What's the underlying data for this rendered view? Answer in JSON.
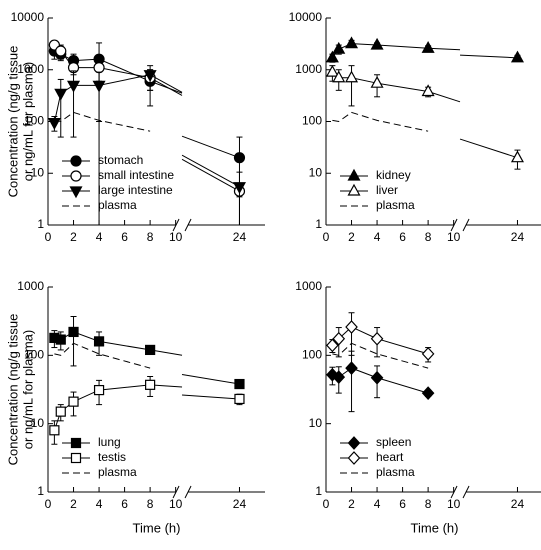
{
  "chart_data": [
    {
      "type": "line",
      "ylabel": [
        "Concentration (ng/g tissue",
        "or ng/mL for plasma)"
      ],
      "x": [
        0.5,
        1,
        2,
        4,
        8,
        24
      ],
      "xlim": [
        0,
        26
      ],
      "xbreak": [
        10.5,
        19.5
      ],
      "xticks": [
        0,
        2,
        4,
        6,
        8,
        10,
        24
      ],
      "ylim": [
        1,
        10000
      ],
      "yticks": [
        1,
        10,
        100,
        1000,
        10000
      ],
      "log_y": true,
      "legend": "lower left",
      "series": [
        {
          "name": "stomach",
          "color": "#000000",
          "marker": "circle",
          "filled": true,
          "values": [
            2300,
            2000,
            1500,
            1600,
            600,
            20
          ],
          "errors": [
            700,
            500,
            500,
            1700,
            400,
            30
          ]
        },
        {
          "name": "small intestine",
          "color": "#000000",
          "marker": "circle",
          "filled": false,
          "values": [
            3000,
            2300,
            1100,
            1100,
            700,
            4.5
          ],
          "errors": [
            300,
            700,
            300,
            500,
            300,
            1
          ]
        },
        {
          "name": "large intestine",
          "color": "#000000",
          "marker": "triangle-down",
          "filled": true,
          "values": [
            95,
            350,
            500,
            500,
            800,
            5.5
          ],
          "errors": [
            30,
            300,
            450,
            400,
            400,
            5
          ]
        },
        {
          "name": "plasma",
          "color": "#000000",
          "dashed": true,
          "values": [
            105,
            100,
            150,
            105,
            65,
            null
          ]
        }
      ]
    },
    {
      "type": "line",
      "x": [
        0.5,
        1,
        2,
        4,
        8,
        24
      ],
      "xlim": [
        0,
        26
      ],
      "xbreak": [
        10.5,
        19.5
      ],
      "xticks": [
        0,
        2,
        4,
        6,
        8,
        10,
        24
      ],
      "ylim": [
        1,
        10000
      ],
      "yticks": [
        1,
        10,
        100,
        1000,
        10000
      ],
      "log_y": true,
      "legend": "lower left",
      "series": [
        {
          "name": "kidney",
          "color": "#000000",
          "marker": "triangle-up",
          "filled": true,
          "values": [
            1700,
            2500,
            3200,
            3000,
            2600,
            1700
          ],
          "errors": [
            300,
            500,
            500,
            300,
            300,
            200
          ]
        },
        {
          "name": "liver",
          "color": "#000000",
          "marker": "triangle-up",
          "filled": false,
          "values": [
            900,
            700,
            700,
            550,
            380,
            20
          ],
          "errors": [
            300,
            300,
            500,
            250,
            80,
            8
          ]
        },
        {
          "name": "plasma",
          "color": "#000000",
          "dashed": true,
          "values": [
            105,
            100,
            150,
            105,
            65,
            null
          ]
        }
      ]
    },
    {
      "type": "line",
      "ylabel": [
        "Concentration (ng/g tissue",
        "or ng/mL for plasma)"
      ],
      "xlabel": "Time (h)",
      "x": [
        0.5,
        1,
        2,
        4,
        8,
        24
      ],
      "xlim": [
        0,
        26
      ],
      "xbreak": [
        10.5,
        19.5
      ],
      "xticks": [
        0,
        2,
        4,
        6,
        8,
        10,
        24
      ],
      "ylim": [
        1,
        1000
      ],
      "yticks": [
        1,
        10,
        100,
        1000
      ],
      "log_y": true,
      "legend": "lower left",
      "series": [
        {
          "name": "lung",
          "color": "#000000",
          "marker": "square",
          "filled": true,
          "values": [
            180,
            170,
            220,
            160,
            120,
            38
          ],
          "errors": [
            50,
            50,
            150,
            60,
            10,
            5
          ]
        },
        {
          "name": "testis",
          "color": "#000000",
          "marker": "square",
          "filled": false,
          "values": [
            8,
            15,
            21,
            31,
            37,
            23
          ],
          "errors": [
            3,
            4,
            8,
            12,
            12,
            4
          ]
        },
        {
          "name": "plasma",
          "color": "#000000",
          "dashed": true,
          "values": [
            105,
            100,
            150,
            105,
            65,
            null
          ]
        }
      ]
    },
    {
      "type": "line",
      "xlabel": "Time (h)",
      "x": [
        0.5,
        1,
        2,
        4,
        8,
        24
      ],
      "xlim": [
        0,
        26
      ],
      "xbreak": [
        10.5,
        19.5
      ],
      "xticks": [
        0,
        2,
        4,
        6,
        8,
        10,
        24
      ],
      "ylim": [
        1,
        1000
      ],
      "yticks": [
        1,
        10,
        100,
        1000
      ],
      "log_y": true,
      "legend": "lower left",
      "series": [
        {
          "name": "spleen",
          "color": "#000000",
          "marker": "diamond",
          "filled": true,
          "values": [
            52,
            48,
            65,
            47,
            28,
            null
          ],
          "errors": [
            15,
            20,
            50,
            23,
            3,
            null
          ]
        },
        {
          "name": "heart",
          "color": "#000000",
          "marker": "diamond",
          "filled": false,
          "values": [
            140,
            175,
            260,
            175,
            105,
            null
          ],
          "errors": [
            30,
            80,
            160,
            80,
            25,
            null
          ]
        },
        {
          "name": "plasma",
          "color": "#000000",
          "dashed": true,
          "values": [
            105,
            100,
            150,
            105,
            65,
            null
          ]
        }
      ]
    }
  ]
}
